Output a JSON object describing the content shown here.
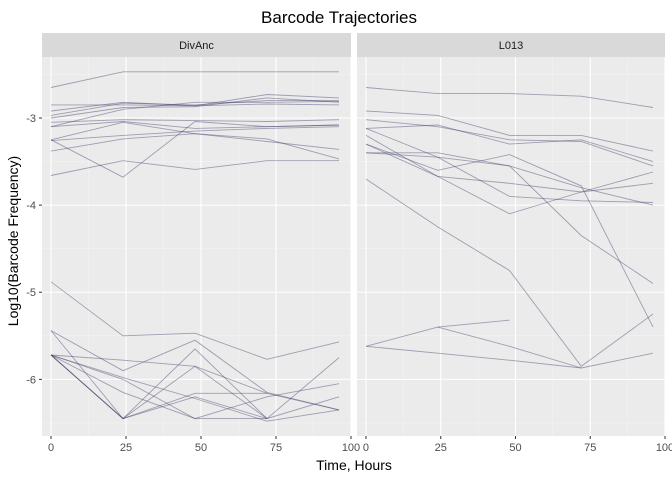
{
  "chart_data": {
    "type": "line",
    "title": "Barcode Trajectories",
    "xlabel": "Time, Hours",
    "ylabel": "Log10(Barcode Frequency)",
    "xlim": [
      -3,
      100
    ],
    "ylim": [
      -6.65,
      -2.3
    ],
    "x_ticks": [
      0,
      25,
      50,
      75,
      100
    ],
    "y_ticks": [
      -3,
      -4,
      -5,
      -6
    ],
    "x_minor": [
      12.5,
      37.5,
      62.5,
      87.5
    ],
    "y_minor": [
      -2.5,
      -3.5,
      -4.5,
      -5.5,
      -6.5
    ],
    "grid": true,
    "line_color": "#3d3d6b",
    "panel_background": "#ebebeb",
    "strip_background": "#d9d9d9",
    "x": [
      0,
      24,
      48,
      72,
      96
    ],
    "facets": [
      {
        "label": "DivAnc",
        "series": [
          {
            "values": [
              -2.65,
              -2.47,
              -2.47,
              -2.47,
              -2.47
            ]
          },
          {
            "values": [
              -2.85,
              -2.85,
              -2.86,
              -2.84,
              -2.85
            ]
          },
          {
            "values": [
              -2.92,
              -2.82,
              -2.86,
              -2.73,
              -2.77
            ]
          },
          {
            "values": [
              -2.97,
              -2.83,
              -2.85,
              -2.8,
              -2.8
            ]
          },
          {
            "values": [
              -3.0,
              -2.88,
              -2.87,
              -2.77,
              -2.82
            ]
          },
          {
            "values": [
              -3.1,
              -2.9,
              -2.82,
              -2.82,
              -2.81
            ]
          },
          {
            "values": [
              -3.05,
              -3.02,
              -3.03,
              -3.04,
              -3.02
            ]
          },
          {
            "values": [
              -3.1,
              -3.04,
              -3.12,
              -3.1,
              -3.08
            ]
          },
          {
            "values": [
              -3.26,
              -3.2,
              -3.15,
              -3.12,
              -3.1
            ]
          },
          {
            "values": [
              -3.38,
              -3.24,
              -3.18,
              -3.27,
              -3.36
            ]
          },
          {
            "values": [
              -3.25,
              -3.68,
              -3.04,
              -3.1,
              -3.08
            ]
          },
          {
            "values": [
              -3.25,
              -3.05,
              -3.18,
              -3.24,
              -3.47
            ]
          },
          {
            "values": [
              -3.66,
              -3.49,
              -3.59,
              -3.49,
              -3.49
            ]
          },
          {
            "values": [
              -4.88,
              -5.5,
              -5.47,
              -5.77,
              -5.57
            ]
          },
          {
            "values": [
              -5.44,
              -5.9,
              -5.55,
              -6.15,
              -6.35
            ]
          },
          {
            "values": [
              -5.44,
              -6.45,
              -5.85,
              -6.45,
              -6.2
            ]
          },
          {
            "values": [
              -5.72,
              -5.78,
              -5.85,
              -6.16,
              -6.35
            ]
          },
          {
            "values": [
              -5.72,
              -5.98,
              -6.22,
              -6.48,
              -6.35
            ]
          },
          {
            "values": [
              -5.72,
              -6.0,
              -6.45,
              -6.2,
              -6.05
            ]
          },
          {
            "values": [
              -5.72,
              -6.45,
              -6.16,
              -6.16,
              null
            ]
          },
          {
            "values": [
              -5.72,
              -6.45,
              -5.65,
              -6.45,
              null
            ]
          },
          {
            "values": [
              -5.72,
              -6.15,
              -6.45,
              -6.45,
              -5.75
            ]
          },
          {
            "values": [
              -5.72,
              -6.45,
              -6.2,
              -6.45,
              null
            ]
          }
        ]
      },
      {
        "label": "L013",
        "series": [
          {
            "values": [
              -2.65,
              -2.72,
              -2.72,
              -2.75,
              -2.88
            ]
          },
          {
            "values": [
              -2.92,
              -2.97,
              -3.2,
              -3.2,
              -3.38
            ]
          },
          {
            "values": [
              -3.02,
              -3.1,
              -3.25,
              -3.27,
              -3.55
            ]
          },
          {
            "values": [
              -3.12,
              -3.08,
              -3.3,
              -3.25,
              -3.5
            ]
          },
          {
            "values": [
              -3.12,
              -3.45,
              -3.55,
              -3.8,
              -4.0
            ]
          },
          {
            "values": [
              -3.3,
              -3.67,
              -3.75,
              -3.85,
              -3.75
            ]
          },
          {
            "values": [
              -3.4,
              -3.45,
              -3.9,
              -3.95,
              -3.97
            ]
          },
          {
            "values": [
              -3.2,
              -3.67,
              -4.1,
              -3.85,
              -3.62
            ]
          },
          {
            "values": [
              -3.4,
              -3.4,
              -3.55,
              -4.35,
              -4.9
            ]
          },
          {
            "values": [
              -3.3,
              -3.6,
              -3.42,
              -3.78,
              -5.4
            ]
          },
          {
            "values": [
              -3.7,
              -4.25,
              -4.75,
              -5.85,
              -5.25
            ]
          },
          {
            "values": [
              -5.62,
              -5.4,
              -5.32,
              null,
              null
            ]
          },
          {
            "values": [
              -5.62,
              -5.7,
              -5.78,
              -5.87,
              -5.7
            ]
          },
          {
            "values": [
              null,
              -5.4,
              -5.62,
              -5.87,
              null
            ]
          }
        ]
      }
    ]
  }
}
